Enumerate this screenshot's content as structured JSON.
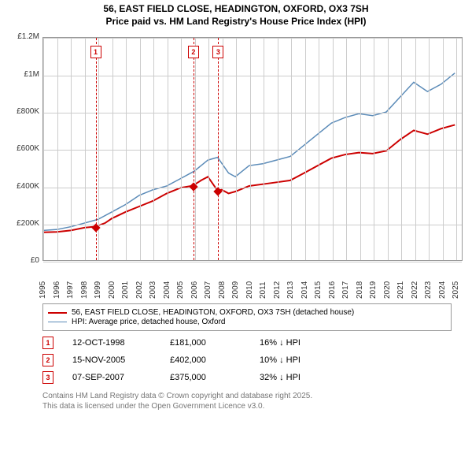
{
  "title_line1": "56, EAST FIELD CLOSE, HEADINGTON, OXFORD, OX3 7SH",
  "title_line2": "Price paid vs. HM Land Registry's House Price Index (HPI)",
  "chart": {
    "type": "line",
    "xlim": [
      1995,
      2025.5
    ],
    "ylim": [
      0,
      1200000
    ],
    "y_ticks": [
      0,
      200000,
      400000,
      600000,
      800000,
      1000000,
      1200000
    ],
    "y_labels": [
      "£0",
      "£200K",
      "£400K",
      "£600K",
      "£800K",
      "£1M",
      "£1.2M"
    ],
    "x_ticks": [
      1995,
      1996,
      1997,
      1998,
      1999,
      2000,
      2001,
      2002,
      2003,
      2004,
      2005,
      2006,
      2007,
      2008,
      2009,
      2010,
      2011,
      2012,
      2013,
      2014,
      2015,
      2016,
      2017,
      2018,
      2019,
      2020,
      2021,
      2022,
      2023,
      2024,
      2025
    ],
    "grid_color": "#cccccc",
    "background": "#ffffff",
    "series_red": {
      "color": "#cc0000",
      "width": 2,
      "x": [
        1995,
        1996,
        1997,
        1998,
        1998.8,
        1999.5,
        2000,
        2001,
        2002,
        2003,
        2004,
        2005,
        2005.9,
        2006.5,
        2007,
        2007.7,
        2008,
        2008.5,
        2009,
        2010,
        2011,
        2012,
        2013,
        2014,
        2015,
        2016,
        2017,
        2018,
        2019,
        2020,
        2021,
        2022,
        2023,
        2024,
        2025
      ],
      "y": [
        150000,
        152000,
        160000,
        175000,
        181000,
        200000,
        225000,
        260000,
        290000,
        320000,
        360000,
        390000,
        402000,
        430000,
        450000,
        375000,
        380000,
        360000,
        370000,
        400000,
        410000,
        420000,
        430000,
        470000,
        510000,
        550000,
        570000,
        580000,
        575000,
        590000,
        650000,
        700000,
        680000,
        710000,
        730000
      ]
    },
    "series_blue": {
      "color": "#5b8bb8",
      "width": 1.5,
      "x": [
        1995,
        1996,
        1997,
        1998,
        1999,
        2000,
        2001,
        2002,
        2003,
        2004,
        2005,
        2006,
        2007,
        2007.7,
        2008.5,
        2009,
        2010,
        2011,
        2012,
        2013,
        2014,
        2015,
        2016,
        2017,
        2018,
        2019,
        2020,
        2021,
        2022,
        2023,
        2024,
        2025
      ],
      "y": [
        160000,
        165000,
        180000,
        200000,
        220000,
        260000,
        300000,
        350000,
        380000,
        400000,
        440000,
        480000,
        540000,
        555000,
        470000,
        450000,
        510000,
        520000,
        540000,
        560000,
        620000,
        680000,
        740000,
        770000,
        790000,
        780000,
        800000,
        880000,
        960000,
        910000,
        950000,
        1010000
      ]
    },
    "markers": [
      {
        "num": "1",
        "x": 1998.8,
        "y": 181000,
        "vline_color": "#cc0000",
        "box_color": "#cc0000"
      },
      {
        "num": "2",
        "x": 2005.9,
        "y": 402000,
        "vline_color": "#cc0000",
        "box_color": "#cc0000"
      },
      {
        "num": "3",
        "x": 2007.7,
        "y": 375000,
        "vline_color": "#cc0000",
        "box_color": "#cc0000"
      }
    ],
    "diamond_color": "#cc0000"
  },
  "legend": {
    "items": [
      {
        "color": "#cc0000",
        "width": 2,
        "label": "56, EAST FIELD CLOSE, HEADINGTON, OXFORD, OX3 7SH (detached house)"
      },
      {
        "color": "#5b8bb8",
        "width": 1.5,
        "label": "HPI: Average price, detached house, Oxford"
      }
    ]
  },
  "events": [
    {
      "num": "1",
      "color": "#cc0000",
      "date": "12-OCT-1998",
      "price": "£181,000",
      "diff": "16% ↓ HPI"
    },
    {
      "num": "2",
      "color": "#cc0000",
      "date": "15-NOV-2005",
      "price": "£402,000",
      "diff": "10% ↓ HPI"
    },
    {
      "num": "3",
      "color": "#cc0000",
      "date": "07-SEP-2007",
      "price": "£375,000",
      "diff": "32% ↓ HPI"
    }
  ],
  "footer_line1": "Contains HM Land Registry data © Crown copyright and database right 2025.",
  "footer_line2": "This data is licensed under the Open Government Licence v3.0."
}
